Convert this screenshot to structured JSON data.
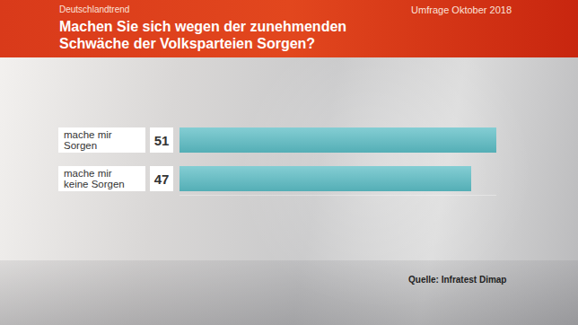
{
  "chart_data": {
    "type": "bar",
    "orientation": "horizontal",
    "header": "Deutschlandtrend",
    "date": "Umfrage Oktober 2018",
    "title": "Machen Sie sich wegen der zunehmenden Schwäche der Volksparteien Sorgen?",
    "categories": [
      "mache mir Sorgen",
      "mache mir keine Sorgen"
    ],
    "values": [
      51,
      47
    ],
    "color": "#5bbdc5",
    "xlim": [
      0,
      51
    ],
    "tick_labels": false,
    "grid": false,
    "data_labels": true,
    "source": "Quelle: Infratest Dimap"
  }
}
